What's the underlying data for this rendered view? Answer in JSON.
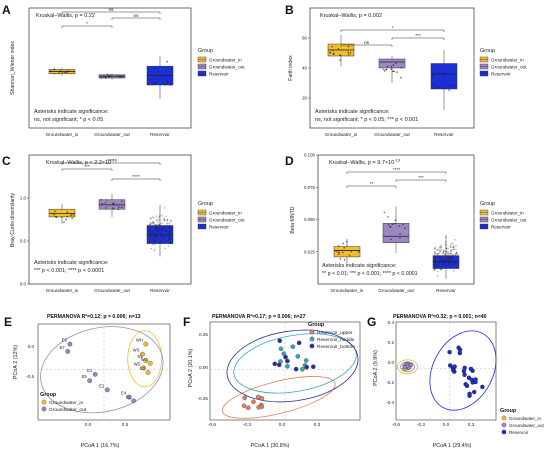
{
  "colors": {
    "groundwater_in": "#f2be2c",
    "groundwater_out": "#9d87c2",
    "reservoir": "#1b2fd6",
    "reservoir_upper": "#e0835a",
    "reservoir_middle": "#2ea7c0",
    "reservoir_bottom": "#2b2ba6"
  },
  "chart_data": [
    {
      "panel": "A",
      "type": "box",
      "test_label": "Kruskal–Wallis, p = 0.22",
      "ylabel": "Shannon_Wiener index",
      "categories": [
        "Groundwater_in",
        "Groundwater_out",
        "Reservoir"
      ],
      "ylim": [
        0,
        8
      ],
      "yticks": [],
      "boxes": [
        {
          "q1": 5.05,
          "median": 5.25,
          "q3": 5.45,
          "wlo": 4.85,
          "whi": 5.6
        },
        {
          "q1": 4.65,
          "median": 4.82,
          "q3": 4.95,
          "wlo": 4.5,
          "whi": 5.05
        },
        {
          "q1": 4.0,
          "median": 4.9,
          "q3": 5.75,
          "wlo": 2.7,
          "whi": 6.7
        }
      ],
      "brackets": [
        {
          "from": 0,
          "to": 1,
          "label": "*"
        },
        {
          "from": 1,
          "to": 2,
          "label": "ns"
        },
        {
          "from": 0,
          "to": 2,
          "label": "ns"
        }
      ],
      "legend_title": "Group",
      "legend": [
        "Groundwater_in",
        "Groundwater_out",
        "Reservoir"
      ],
      "note_title": "Asterisks indicate significance:",
      "note_line": "ns, not significant; * p < 0.05"
    },
    {
      "panel": "B",
      "type": "box",
      "test_label": "Kruskal–Wallis, p = 0.002",
      "ylabel": "Faith index",
      "categories": [
        "Groundwater_in",
        "Groundwater_out",
        "Reservoir"
      ],
      "ylim": [
        0,
        80
      ],
      "yticks": [
        "20",
        "40",
        "60"
      ],
      "boxes": [
        {
          "q1": 48,
          "median": 52,
          "q3": 56,
          "wlo": 41,
          "whi": 62
        },
        {
          "q1": 40,
          "median": 44,
          "q3": 46,
          "wlo": 30,
          "whi": 48
        },
        {
          "q1": 26,
          "median": 36,
          "q3": 43,
          "wlo": 12,
          "whi": 52
        }
      ],
      "brackets": [
        {
          "from": 0,
          "to": 1,
          "label": "ns"
        },
        {
          "from": 1,
          "to": 2,
          "label": "***"
        },
        {
          "from": 0,
          "to": 2,
          "label": "*"
        }
      ],
      "legend_title": "Group",
      "legend": [
        "Groundwater_in",
        "Groundwater_out",
        "Reservoir"
      ],
      "note_title": "Asterisks indicate significance:",
      "note_line": "ns, not significant; * p < 0.05; *** p < 0.001"
    },
    {
      "panel": "C",
      "type": "box",
      "test_label": "Kruskal–Wallis, p < 2.2×10",
      "test_label_sup": "-16",
      "ylabel": "Bray-Curtis dissimilarity",
      "categories": [
        "Groundwater_in",
        "Groundwater_out",
        "Reservoir"
      ],
      "ylim": [
        0,
        1.5
      ],
      "yticks": [
        "0.0",
        "0.5",
        "1.0"
      ],
      "boxes": [
        {
          "q1": 0.78,
          "median": 0.82,
          "q3": 0.87,
          "wlo": 0.7,
          "whi": 0.93
        },
        {
          "q1": 0.87,
          "median": 0.92,
          "q3": 0.98,
          "wlo": 0.78,
          "whi": 1.05
        },
        {
          "q1": 0.47,
          "median": 0.57,
          "q3": 0.68,
          "wlo": 0.32,
          "whi": 0.92
        }
      ],
      "brackets": [
        {
          "from": 0,
          "to": 1,
          "label": "***"
        },
        {
          "from": 1,
          "to": 2,
          "label": "****"
        },
        {
          "from": 0,
          "to": 2,
          "label": "****"
        }
      ],
      "legend_title": "Group",
      "legend": [
        "Groundwater_in",
        "Groundwater_out",
        "Reservoir"
      ],
      "note_title": "Asterisks indicate significance:",
      "note_line": "*** p < 0.001; **** p < 0.0001"
    },
    {
      "panel": "D",
      "type": "box",
      "test_label": "Kruskal–Wallis, p = 9.7×10",
      "test_label_sup": "-13",
      "ylabel": "Beta MNTD",
      "categories": [
        "Groundwater_in",
        "Groundwater_out",
        "Reservoir"
      ],
      "ylim": [
        0,
        0.1
      ],
      "yticks": [
        "0.025",
        "0.050",
        "0.075",
        "0.100"
      ],
      "boxes": [
        {
          "q1": 0.021,
          "median": 0.026,
          "q3": 0.029,
          "wlo": 0.016,
          "whi": 0.035
        },
        {
          "q1": 0.032,
          "median": 0.037,
          "q3": 0.047,
          "wlo": 0.024,
          "whi": 0.06
        },
        {
          "q1": 0.012,
          "median": 0.017,
          "q3": 0.022,
          "wlo": 0.004,
          "whi": 0.038
        }
      ],
      "brackets": [
        {
          "from": 0,
          "to": 1,
          "label": "**"
        },
        {
          "from": 1,
          "to": 2,
          "label": "***"
        },
        {
          "from": 0,
          "to": 2,
          "label": "****"
        }
      ],
      "legend_title": "Group",
      "legend": [
        "Groundwater_in",
        "Groundwater_out",
        "Reservoir"
      ],
      "note_title": "Asterisks indicate significance:",
      "note_line": "** p < 0.01; *** p < 0.001; **** p < 0.0001"
    },
    {
      "panel": "E",
      "type": "scatter",
      "title": "PERMANOVA R²=0.12; p = 0.006; n=13",
      "xlabel": "PCoA 1 (16.7%)",
      "ylabel": "PCoA 2 (12%)",
      "xlim": [
        -0.6,
        0.6
      ],
      "ylim": [
        -0.55,
        0.5
      ],
      "xticks": [
        "0.0",
        "0.5"
      ],
      "yticks": [
        "0.0",
        "-0.5"
      ],
      "legend_title": "Group",
      "legend": [
        "Groundwater_in",
        "Groundwater_out"
      ],
      "points": [
        {
          "x": 0.38,
          "y": 0.28,
          "g": 0,
          "label": "WH"
        },
        {
          "x": 0.35,
          "y": 0.17,
          "g": 0,
          "label": "WS"
        },
        {
          "x": 0.38,
          "y": 0.1,
          "g": 0,
          "label": "N1"
        },
        {
          "x": 0.42,
          "y": 0.07,
          "g": 0,
          "label": "W1"
        },
        {
          "x": 0.36,
          "y": 0.02,
          "g": 0,
          "label": "WD"
        },
        {
          "x": 0.4,
          "y": -0.03,
          "g": 0,
          "label": "E3"
        },
        {
          "x": -0.31,
          "y": 0.28,
          "g": 1,
          "label": "E6"
        },
        {
          "x": -0.33,
          "y": 0.2,
          "g": 1,
          "label": "E7"
        },
        {
          "x": -0.08,
          "y": -0.05,
          "g": 1,
          "label": "E1"
        },
        {
          "x": -0.13,
          "y": -0.12,
          "g": 1,
          "label": "E5"
        },
        {
          "x": 0.03,
          "y": -0.22,
          "g": 1,
          "label": "E2"
        },
        {
          "x": 0.23,
          "y": -0.3,
          "g": 1,
          "label": "E4"
        },
        {
          "x": 0.27,
          "y": -0.34,
          "g": 1,
          "label": "E1"
        }
      ]
    },
    {
      "panel": "F",
      "type": "scatter",
      "title": "PERMANOVA R²=0.17; p = 0.006; n=27",
      "xlabel": "PCoA 1 (30.8%)",
      "ylabel": "PCoA 2 (20.1%)",
      "xlim": [
        -0.6,
        0.6
      ],
      "ylim": [
        -0.4,
        0.38
      ],
      "xticks": [
        "-0.6",
        "-0.3",
        "0.0",
        "0.3"
      ],
      "yticks": [
        "0.25",
        "0.00",
        "-0.25"
      ],
      "legend_title": "Group",
      "legend": [
        "Reservoir_upper",
        "Reservoir_middle",
        "Reservoir_bottom"
      ]
    },
    {
      "panel": "G",
      "type": "scatter",
      "title": "PERMANOVA R²=0.32; p = 0.001; n=40",
      "xlabel": "PCoA 1 (29.4%)",
      "ylabel": "PCoA 2 (9.9%)",
      "xlim": [
        -0.7,
        0.6
      ],
      "ylim": [
        -0.55,
        0.5
      ],
      "xticks": [
        "-0.6",
        "-0.3",
        "0.0",
        "0.3"
      ],
      "yticks": [
        "0.4",
        "0.2",
        "0.0",
        "-0.2",
        "-0.4"
      ],
      "legend_title": "Group",
      "legend": [
        "Groundwater_in",
        "Groundwater_out",
        "Reservoir"
      ]
    }
  ]
}
